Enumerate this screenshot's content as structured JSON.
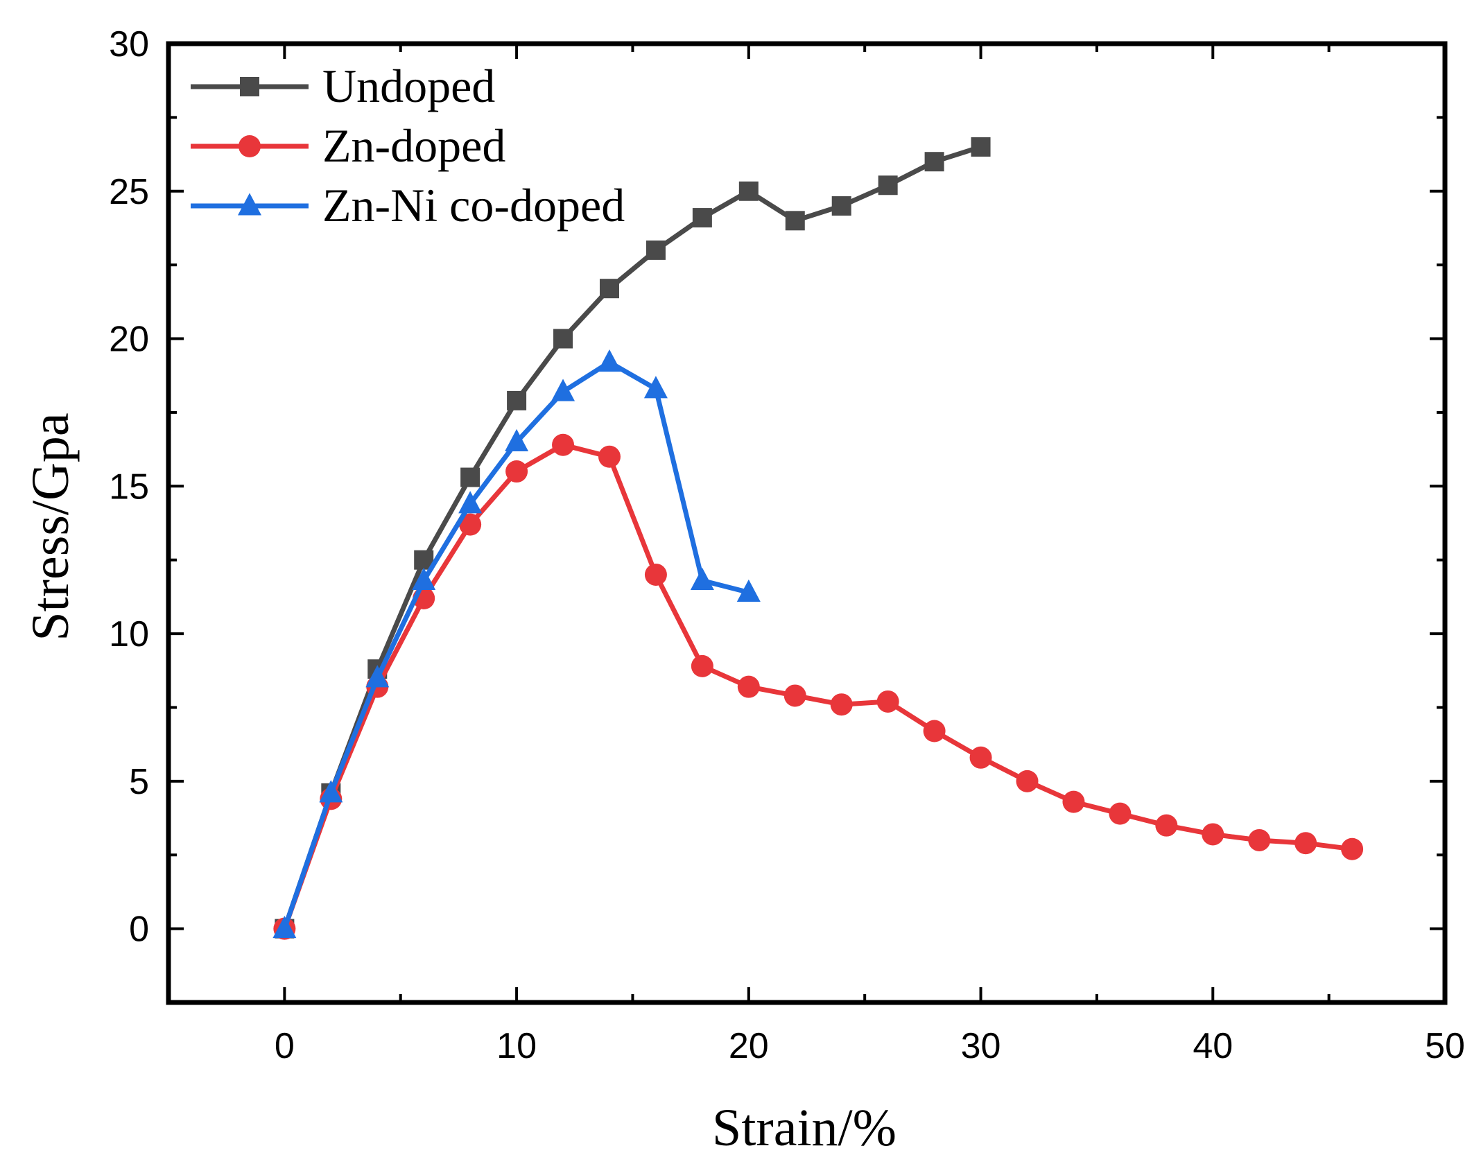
{
  "chart_data": {
    "type": "line",
    "title": "",
    "xlabel": "Strain/%",
    "ylabel": "Stress/Gpa",
    "xlim": [
      -5,
      50
    ],
    "ylim": [
      -2.5,
      30
    ],
    "xticks": [
      0,
      10,
      20,
      30,
      40,
      50
    ],
    "yticks": [
      0,
      5,
      10,
      15,
      20,
      25,
      30
    ],
    "grid": false,
    "legend_position": "top-left",
    "series": [
      {
        "name": "Undoped",
        "color": "#4a4a4a",
        "marker": "square",
        "x": [
          0,
          2,
          4,
          6,
          8,
          10,
          12,
          14,
          16,
          18,
          20,
          22,
          24,
          26,
          28,
          30
        ],
        "y": [
          0,
          4.6,
          8.8,
          12.5,
          15.3,
          17.9,
          20.0,
          21.7,
          23.0,
          24.1,
          25.0,
          24.0,
          24.5,
          25.2,
          26.0,
          26.5
        ]
      },
      {
        "name": "Zn-doped",
        "color": "#e8363a",
        "marker": "circle",
        "x": [
          0,
          2,
          4,
          6,
          8,
          10,
          12,
          14,
          16,
          18,
          20,
          22,
          24,
          26,
          28,
          30,
          32,
          34,
          36,
          38,
          40,
          42,
          44,
          46
        ],
        "y": [
          0,
          4.4,
          8.2,
          11.2,
          13.7,
          15.5,
          16.4,
          16.0,
          12.0,
          8.9,
          8.2,
          7.9,
          7.6,
          7.7,
          6.7,
          5.8,
          5.0,
          4.3,
          3.9,
          3.5,
          3.2,
          3.0,
          2.9,
          2.7
        ]
      },
      {
        "name": "Zn-Ni co-doped",
        "color": "#1f6fe0",
        "marker": "triangle",
        "x": [
          0,
          2,
          4,
          6,
          8,
          10,
          12,
          14,
          16,
          18,
          20
        ],
        "y": [
          0,
          4.6,
          8.5,
          11.8,
          14.4,
          16.5,
          18.2,
          19.2,
          18.3,
          11.8,
          11.4
        ]
      }
    ]
  }
}
